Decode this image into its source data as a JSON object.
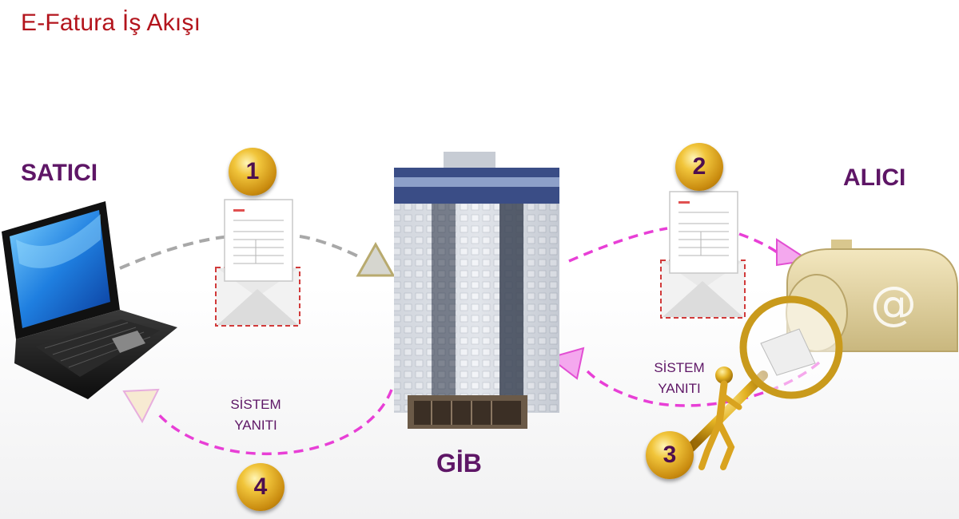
{
  "title": "E-Fatura İş Akışı",
  "actors": {
    "seller": "SATICI",
    "buyer": "ALICI",
    "authority": "GİB"
  },
  "steps": [
    "1",
    "2",
    "3",
    "4"
  ],
  "responses": {
    "to_authority": "SİSTEM YANITI",
    "to_seller": "SİSTEM YANITI"
  },
  "colors": {
    "title": "#b3141c",
    "label": "#5e1666",
    "flow_grey": "#a8a8a8",
    "flow_pink": "#e83fd6",
    "badge_gold": "#e2b12a"
  },
  "icons": [
    "laptop-icon",
    "invoice-envelope-icon",
    "office-building-icon",
    "mailbox-icon",
    "magnifier-icon",
    "stick-figure-icon"
  ],
  "mailbox_symbol": "@"
}
